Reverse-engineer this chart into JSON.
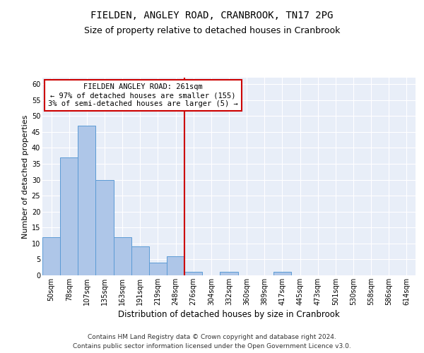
{
  "title": "FIELDEN, ANGLEY ROAD, CRANBROOK, TN17 2PG",
  "subtitle": "Size of property relative to detached houses in Cranbrook",
  "xlabel": "Distribution of detached houses by size in Cranbrook",
  "ylabel": "Number of detached properties",
  "bar_labels": [
    "50sqm",
    "78sqm",
    "107sqm",
    "135sqm",
    "163sqm",
    "191sqm",
    "219sqm",
    "248sqm",
    "276sqm",
    "304sqm",
    "332sqm",
    "360sqm",
    "389sqm",
    "417sqm",
    "445sqm",
    "473sqm",
    "501sqm",
    "530sqm",
    "558sqm",
    "586sqm",
    "614sqm"
  ],
  "bar_values": [
    12,
    37,
    47,
    30,
    12,
    9,
    4,
    6,
    1,
    0,
    1,
    0,
    0,
    1,
    0,
    0,
    0,
    0,
    0,
    0,
    0
  ],
  "bar_color": "#aec6e8",
  "bar_edgecolor": "#5b9bd5",
  "vline_x": 7.5,
  "vline_color": "#cc0000",
  "annotation_text": "FIELDEN ANGLEY ROAD: 261sqm\n← 97% of detached houses are smaller (155)\n3% of semi-detached houses are larger (5) →",
  "annotation_box_edgecolor": "#cc0000",
  "annotation_box_facecolor": "#ffffff",
  "ylim": [
    0,
    62
  ],
  "yticks": [
    0,
    5,
    10,
    15,
    20,
    25,
    30,
    35,
    40,
    45,
    50,
    55,
    60
  ],
  "background_color": "#e8eef8",
  "footer_line1": "Contains HM Land Registry data © Crown copyright and database right 2024.",
  "footer_line2": "Contains public sector information licensed under the Open Government Licence v3.0.",
  "title_fontsize": 10,
  "subtitle_fontsize": 9,
  "xlabel_fontsize": 8.5,
  "ylabel_fontsize": 8,
  "tick_fontsize": 7,
  "annotation_fontsize": 7.5,
  "footer_fontsize": 6.5
}
